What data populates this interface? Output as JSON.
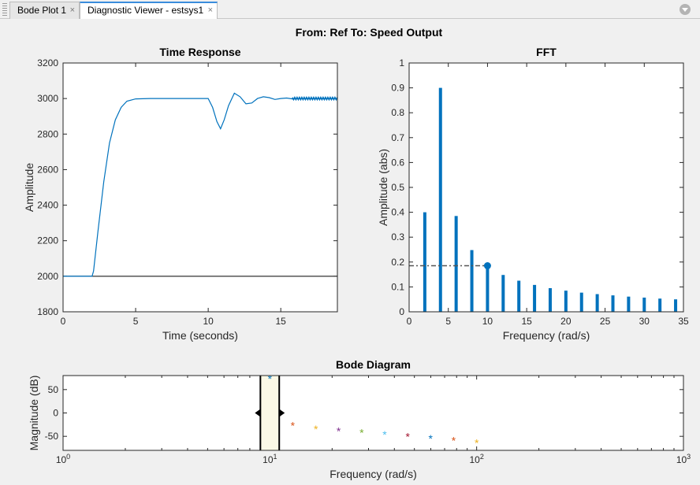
{
  "tabs": [
    {
      "label": "Bode Plot 1",
      "close": "×",
      "active": false
    },
    {
      "label": "Diagnostic Viewer - estsys1",
      "close": "×",
      "active": true
    }
  ],
  "icons": {
    "tab_menu": "chevron-down-icon",
    "tab_grip": "grip-icon"
  },
  "figure_title": "From: Ref  To: Speed Output",
  "colors": {
    "series": "#0072bd",
    "baseline": "#333333",
    "cursor_band": "#fbf9e6",
    "reference": "#555555"
  },
  "chart_data": [
    {
      "type": "line",
      "title": "Time Response",
      "xlabel": "Time (seconds)",
      "ylabel": "Amplitude",
      "xlim": [
        0,
        18.9
      ],
      "ylim": [
        1800,
        3200
      ],
      "xticks": [
        0,
        5,
        10,
        15
      ],
      "yticks": [
        1800,
        2000,
        2200,
        2400,
        2600,
        2800,
        3000,
        3200
      ],
      "grid": false,
      "reference_line": 2000,
      "series": [
        {
          "x": [
            0,
            2.0,
            2.1,
            2.4,
            2.8,
            3.2,
            3.6,
            4.0,
            4.4,
            5.0,
            6,
            8,
            10.0,
            10.3,
            10.6,
            10.85,
            11.1,
            11.4,
            11.8,
            12.2,
            12.6,
            13.0,
            13.4,
            13.8,
            14.2,
            14.6,
            15.0,
            15.4,
            15.8,
            16.5,
            17.5,
            18.9
          ],
          "y": [
            2000,
            2000,
            2030,
            2250,
            2530,
            2750,
            2880,
            2950,
            2985,
            2998,
            3000,
            3000,
            3000,
            2950,
            2870,
            2830,
            2880,
            2960,
            3030,
            3010,
            2970,
            2975,
            3000,
            3010,
            3005,
            2995,
            3000,
            3003,
            2998,
            3000,
            2999,
            3000
          ]
        }
      ],
      "noise_start_x": 15.8
    },
    {
      "type": "bar",
      "title": "FFT",
      "xlabel": "Frequency (rad/s)",
      "ylabel": "Amplitude (abs)",
      "xlim": [
        0,
        35
      ],
      "ylim": [
        0,
        1
      ],
      "xticks": [
        0,
        5,
        10,
        15,
        20,
        25,
        30,
        35
      ],
      "yticks": [
        0,
        0.1,
        0.2,
        0.3,
        0.4,
        0.5,
        0.6,
        0.7,
        0.8,
        0.9,
        1
      ],
      "grid": false,
      "x": [
        2,
        4,
        6,
        8,
        10,
        12,
        14,
        16,
        18,
        20,
        22,
        24,
        26,
        28,
        30,
        32,
        34
      ],
      "values": [
        0.4,
        0.9,
        0.385,
        0.248,
        0.185,
        0.148,
        0.125,
        0.108,
        0.095,
        0.085,
        0.077,
        0.071,
        0.066,
        0.061,
        0.057,
        0.053,
        0.05
      ],
      "selected": {
        "x": 10,
        "value": 0.185
      }
    },
    {
      "type": "scatter",
      "title": "Bode Diagram",
      "xlabel": "Frequency  (rad/s)",
      "ylabel": "Magnitude (dB)",
      "xscale": "log",
      "xlim": [
        1,
        1000
      ],
      "ylim": [
        -80,
        80
      ],
      "xtick_values": [
        1,
        10,
        100,
        1000
      ],
      "xticks": [
        {
          "base": "10",
          "exp": "0"
        },
        {
          "base": "10",
          "exp": "1"
        },
        {
          "base": "10",
          "exp": "2"
        },
        {
          "base": "10",
          "exp": "3"
        }
      ],
      "yticks": [
        -50,
        0,
        50
      ],
      "grid": false,
      "marker": "*",
      "x": [
        10,
        12.9,
        16.7,
        21.5,
        27.8,
        35.9,
        46.4,
        59.9,
        77.4,
        100
      ],
      "y": [
        75,
        -25,
        -33,
        -37,
        -40,
        -45,
        -49,
        -53,
        -57,
        -62
      ],
      "point_colors": [
        "#0072bd",
        "#d95319",
        "#edb120",
        "#7e2f8e",
        "#77ac30",
        "#4dbeee",
        "#a2142f",
        "#0072bd",
        "#d95319",
        "#edb120"
      ],
      "freq_band": [
        9.0,
        11.1
      ]
    }
  ]
}
